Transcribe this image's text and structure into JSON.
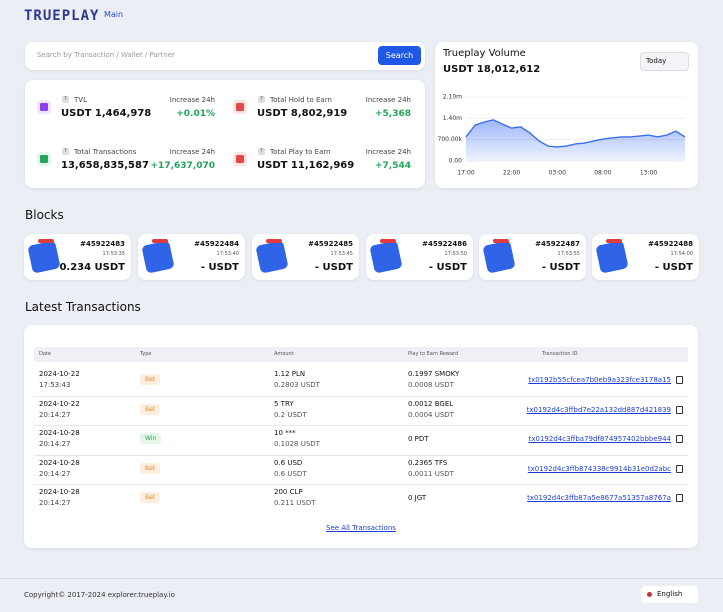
{
  "header": {
    "logo": "TRUEPLAY",
    "nav": [
      "Main"
    ]
  },
  "search": {
    "placeholder": "Search by Transaction / Wallet / Partner",
    "button": "Search"
  },
  "stats": [
    {
      "label": "TVL",
      "value": "USDT 1,464,978",
      "change_label": "Increase 24h",
      "change": "+0.01%"
    },
    {
      "label": "Total Hold to Earn",
      "value": "USDT 8,802,919",
      "change_label": "Increase 24h",
      "change": "+5,368"
    },
    {
      "label": "Total Transactions",
      "value": "13,658,835,587",
      "change_label": "Increase 24h",
      "change": "+17,637,070"
    },
    {
      "label": "Total Play to Earn",
      "value": "USDT 11,162,969",
      "change_label": "Increase 24h",
      "change": "+7,544"
    }
  ],
  "volume": {
    "title": "Trueplay Volume",
    "total": "USDT 18,012,612",
    "period": "Today",
    "chart_data": {
      "type": "area",
      "color": "#3b6ef0",
      "categories": [
        "17:00",
        null,
        null,
        null,
        null,
        "22:00",
        null,
        null,
        null,
        null,
        "03:00",
        null,
        null,
        null,
        null,
        "08:00",
        null,
        null,
        null,
        null,
        "13:00",
        null,
        null,
        null,
        null
      ],
      "values": [
        790000,
        1180000,
        1280000,
        1350000,
        1210000,
        1080000,
        1120000,
        920000,
        660000,
        490000,
        460000,
        490000,
        560000,
        590000,
        660000,
        720000,
        755000,
        790000,
        790000,
        820000,
        850000,
        790000,
        850000,
        980000,
        790000
      ],
      "ylim": [
        0,
        2100000
      ],
      "yticks": [
        {
          "value": 0,
          "label": "0.00"
        },
        {
          "value": 700000,
          "label": "700.00k"
        },
        {
          "value": 1400000,
          "label": "1.40m"
        },
        {
          "value": 2100000,
          "label": "2.10m"
        }
      ],
      "grid": true
    }
  },
  "blocks": {
    "title": "Blocks",
    "items": [
      {
        "number": "#45922483",
        "time": "17:53:35",
        "amount": "0.234 USDT"
      },
      {
        "number": "#45922484",
        "time": "17:53:40",
        "amount": "- USDT"
      },
      {
        "number": "#45922485",
        "time": "17:53:45",
        "amount": "- USDT"
      },
      {
        "number": "#45922486",
        "time": "17:53:50",
        "amount": "- USDT"
      },
      {
        "number": "#45922487",
        "time": "17:53:55",
        "amount": "- USDT"
      },
      {
        "number": "#45922488",
        "time": "17:54:00",
        "amount": "- USDT"
      }
    ]
  },
  "transactions": {
    "title": "Latest Transactions",
    "columns": [
      "Date",
      "Type",
      "Amount",
      "Play to Earn Reward",
      "Transaction ID"
    ],
    "rows": [
      {
        "date": "2024-10-22",
        "time": "17:53:43",
        "type": "Bet",
        "amount": "1.12 PLN",
        "amount_usdt": "0.2803 USDT",
        "reward": "0.1997 SMOKY",
        "reward_usdt": "0.0008 USDT",
        "tx": "tx0192b55cfcea7b0eb9a323fce3178a15"
      },
      {
        "date": "2024-10-22",
        "time": "20:14:27",
        "type": "Bet",
        "amount": "5 TRY",
        "amount_usdt": "0.2 USDT",
        "reward": "0.0012 BGEL",
        "reward_usdt": "0.0004 USDT",
        "tx": "tx0192d4c3ffbd7e22a132dd887d421839"
      },
      {
        "date": "2024-10-28",
        "time": "20:14:27",
        "type": "Win",
        "amount": "10 ***",
        "amount_usdt": "0.1028 USDT",
        "reward": "0 PDT",
        "tx": "tx0192d4c3ffba79df874957402bbbe944"
      },
      {
        "date": "2024-10-28",
        "time": "20:14:27",
        "type": "Bet",
        "amount": "0.6 USD",
        "amount_usdt": "0.6 USDT",
        "reward": "0.2365 TFS",
        "reward_usdt": "0.0011 USDT",
        "tx": "tx0192d4c3ffb874338c9914b31e0d2abc"
      },
      {
        "date": "2024-10-28",
        "time": "20:14:27",
        "type": "Bet",
        "amount": "200 CLP",
        "amount_usdt": "0.211 USDT",
        "reward": "0 JGT",
        "tx": "tx0192d4c3ffb87a5e8677a51357a8767a"
      }
    ],
    "see_all": "See All Transactions"
  },
  "footer": {
    "copyright": "Copyright© 2017-2024 explorer.trueplay.io",
    "language": "English"
  }
}
